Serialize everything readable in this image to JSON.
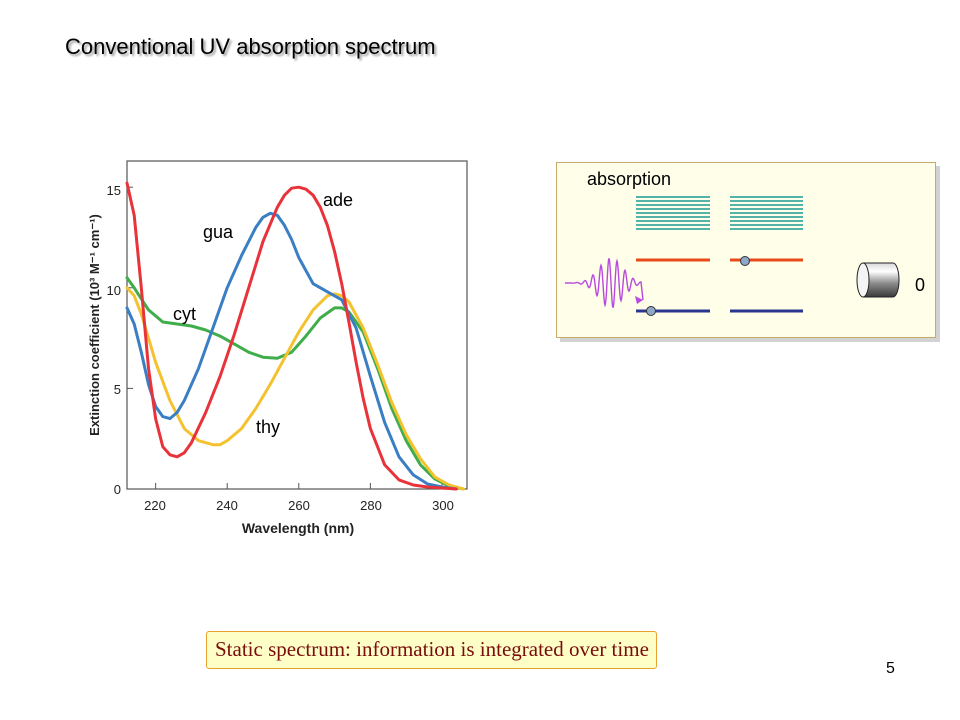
{
  "slide": {
    "title": "Conventional UV absorption spectrum",
    "caption": "Static spectrum: information is integrated over time",
    "page_number": "5"
  },
  "diagram": {
    "label": "absorption",
    "count": "0",
    "icons": [
      "excited-band-stack-icon",
      "energy-level-lines-icon",
      "electron-dot-icon",
      "light-wave-pulse-icon",
      "detector-cylinder-icon"
    ],
    "colors": {
      "background": "#fefee9",
      "band": "#1a9a93",
      "upper_level": "#e64a19",
      "lower_level": "#2a3590",
      "pulse": "#b84ae0"
    }
  },
  "chart_data": {
    "type": "line",
    "xlabel": "Wavelength (nm)",
    "ylabel": "Extinction coefficient (10³ M⁻¹ cm⁻¹)",
    "xlim": [
      212,
      307
    ],
    "ylim": [
      0,
      16.3
    ],
    "xticks": [
      "220",
      "240",
      "260",
      "280",
      "300"
    ],
    "yticks": [
      "0",
      "5",
      "10",
      "15"
    ],
    "grid": false,
    "legend": "inline labels",
    "series": [
      {
        "name": "ade",
        "color": "#e8333a",
        "x": [
          212,
          214,
          216,
          218,
          220,
          222,
          224,
          226,
          228,
          230,
          234,
          238,
          242,
          246,
          250,
          254,
          256,
          258,
          260,
          262,
          264,
          266,
          268,
          270,
          272,
          274,
          276,
          278,
          280,
          284,
          288,
          292,
          296,
          300,
          304
        ],
        "y": [
          15.2,
          13.6,
          10.0,
          6.0,
          3.5,
          2.1,
          1.7,
          1.6,
          1.8,
          2.3,
          3.8,
          5.6,
          7.7,
          10.0,
          12.3,
          14.0,
          14.6,
          14.95,
          15.0,
          14.9,
          14.6,
          14.0,
          13.1,
          11.8,
          10.2,
          8.3,
          6.3,
          4.5,
          3.0,
          1.2,
          0.45,
          0.2,
          0.1,
          0.05,
          0.0
        ]
      },
      {
        "name": "gua",
        "color": "#3a7ec4",
        "x": [
          212,
          214,
          216,
          218,
          220,
          222,
          224,
          226,
          228,
          232,
          236,
          240,
          244,
          248,
          250,
          252,
          254,
          256,
          258,
          260,
          264,
          268,
          272,
          276,
          280,
          284,
          288,
          292,
          296,
          300,
          304
        ],
        "y": [
          9.0,
          8.2,
          6.8,
          5.2,
          4.1,
          3.6,
          3.5,
          3.8,
          4.4,
          6.0,
          8.0,
          10.0,
          11.6,
          13.0,
          13.5,
          13.7,
          13.6,
          13.1,
          12.4,
          11.5,
          10.2,
          9.8,
          9.4,
          8.0,
          5.6,
          3.3,
          1.6,
          0.7,
          0.25,
          0.1,
          0.0
        ]
      },
      {
        "name": "cyt",
        "color": "#3fae4a",
        "x": [
          212,
          214,
          218,
          222,
          226,
          230,
          234,
          238,
          242,
          246,
          250,
          254,
          258,
          262,
          266,
          270,
          272,
          274,
          278,
          282,
          286,
          290,
          294,
          298,
          302,
          306
        ],
        "y": [
          10.5,
          10.0,
          8.9,
          8.3,
          8.2,
          8.1,
          7.9,
          7.6,
          7.2,
          6.8,
          6.55,
          6.5,
          6.8,
          7.6,
          8.5,
          9.0,
          9.0,
          8.8,
          7.8,
          6.0,
          4.0,
          2.4,
          1.2,
          0.5,
          0.15,
          0.0
        ]
      },
      {
        "name": "thy",
        "color": "#f5c22f",
        "x": [
          212,
          214,
          216,
          218,
          220,
          224,
          228,
          232,
          236,
          238,
          240,
          244,
          248,
          252,
          256,
          260,
          264,
          268,
          270,
          272,
          274,
          278,
          282,
          286,
          290,
          294,
          298,
          302,
          306
        ],
        "y": [
          10.0,
          9.6,
          8.7,
          7.5,
          6.3,
          4.4,
          3.0,
          2.4,
          2.2,
          2.2,
          2.4,
          3.0,
          4.0,
          5.2,
          6.5,
          7.8,
          8.9,
          9.6,
          9.7,
          9.6,
          9.3,
          8.0,
          6.2,
          4.3,
          2.7,
          1.5,
          0.6,
          0.2,
          0.0
        ]
      }
    ],
    "annotations": [
      {
        "text": "ade",
        "series": "ade"
      },
      {
        "text": "gua",
        "series": "gua"
      },
      {
        "text": "cyt",
        "series": "cyt"
      },
      {
        "text": "thy",
        "series": "thy"
      }
    ]
  }
}
